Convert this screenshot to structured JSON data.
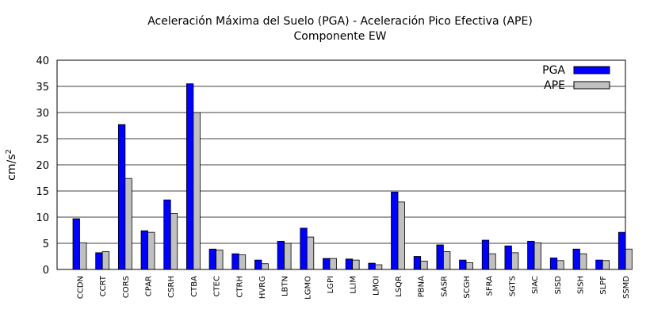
{
  "chart_data": {
    "type": "bar",
    "title": "Aceleración Máxima del Suelo (PGA) -  Aceleración Pico Efectiva (APE)",
    "subtitle": "Componente EW",
    "ylabel": "cm/s",
    "ylabel_sup": "2",
    "xlabel": "",
    "ylim": [
      0,
      40
    ],
    "yticks": [
      0,
      5,
      10,
      15,
      20,
      25,
      30,
      35,
      40
    ],
    "grid": "horizontal",
    "legend_position": "top-right",
    "categories": [
      "CCDN",
      "CCRT",
      "CORS",
      "CPAR",
      "CSRH",
      "CTBA",
      "CTEC",
      "CTRH",
      "HVRG",
      "LBTN",
      "LGMO",
      "LGPI",
      "LLIM",
      "LMOI",
      "LSQR",
      "PBNA",
      "SASR",
      "SCGH",
      "SFRA",
      "SGTS",
      "SIAC",
      "SISD",
      "SISH",
      "SLPF",
      "SSMD"
    ],
    "series": [
      {
        "name": "PGA",
        "color": "#0000ff",
        "values": [
          9.7,
          3.2,
          27.7,
          7.4,
          13.3,
          35.5,
          3.9,
          3.0,
          1.8,
          5.4,
          7.9,
          2.1,
          2.0,
          1.2,
          14.8,
          2.5,
          4.7,
          1.8,
          5.6,
          4.5,
          5.4,
          2.2,
          3.9,
          1.8,
          7.1
        ]
      },
      {
        "name": "APE",
        "color": "#c0c0c0",
        "values": [
          5.1,
          3.4,
          17.4,
          7.1,
          10.7,
          30.0,
          3.7,
          2.8,
          1.1,
          5.0,
          6.2,
          2.1,
          1.8,
          0.9,
          12.9,
          1.6,
          3.4,
          1.3,
          3.0,
          3.2,
          5.1,
          1.7,
          3.0,
          1.7,
          3.9
        ]
      }
    ]
  }
}
